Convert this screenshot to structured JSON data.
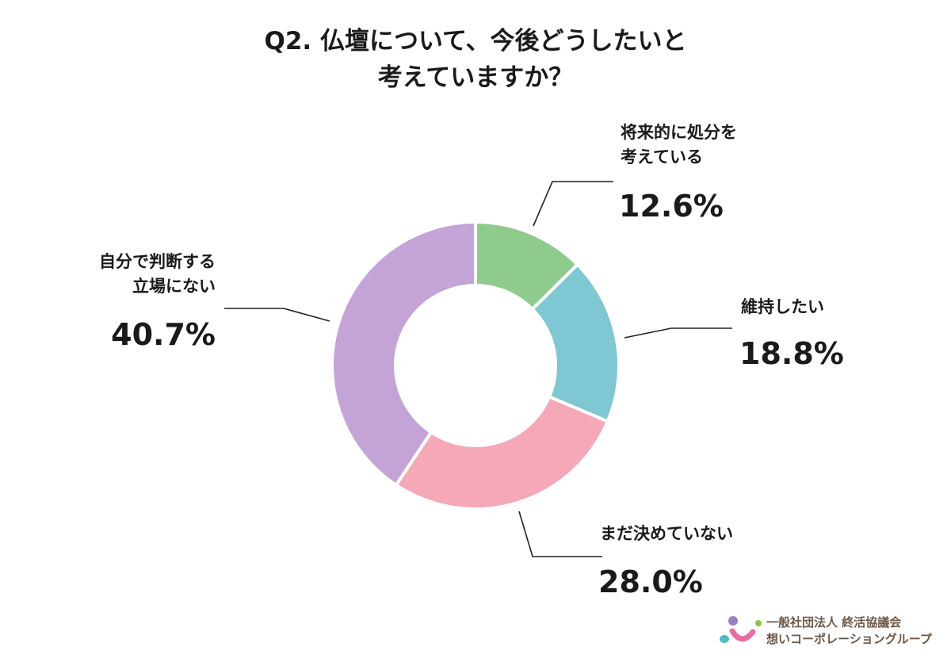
{
  "chart_data": {
    "type": "pie",
    "donut": true,
    "title_lines": [
      "Q2. 仏壇について、今後どうしたいと",
      "考えていますか？"
    ],
    "slices": [
      {
        "label_lines": [
          "将来的に処分を",
          "考えている"
        ],
        "value": 12.6,
        "display": "12.6%",
        "color": "#8fcb8c"
      },
      {
        "label_lines": [
          "維持したい"
        ],
        "value": 18.8,
        "display": "18.8%",
        "color": "#7fc7d3"
      },
      {
        "label_lines": [
          "まだ決めていない"
        ],
        "value": 28.0,
        "display": "28.0%",
        "color": "#f4a8b8"
      },
      {
        "label_lines": [
          "自分で判断する",
          "立場にない"
        ],
        "value": 40.7,
        "display": "40.7%",
        "color": "#c4a3d6"
      }
    ],
    "start": "top",
    "direction": "clockwise"
  },
  "logo": {
    "line1": "一般社団法人 終活協議会",
    "line2": "想いコーポレーショングループ"
  }
}
